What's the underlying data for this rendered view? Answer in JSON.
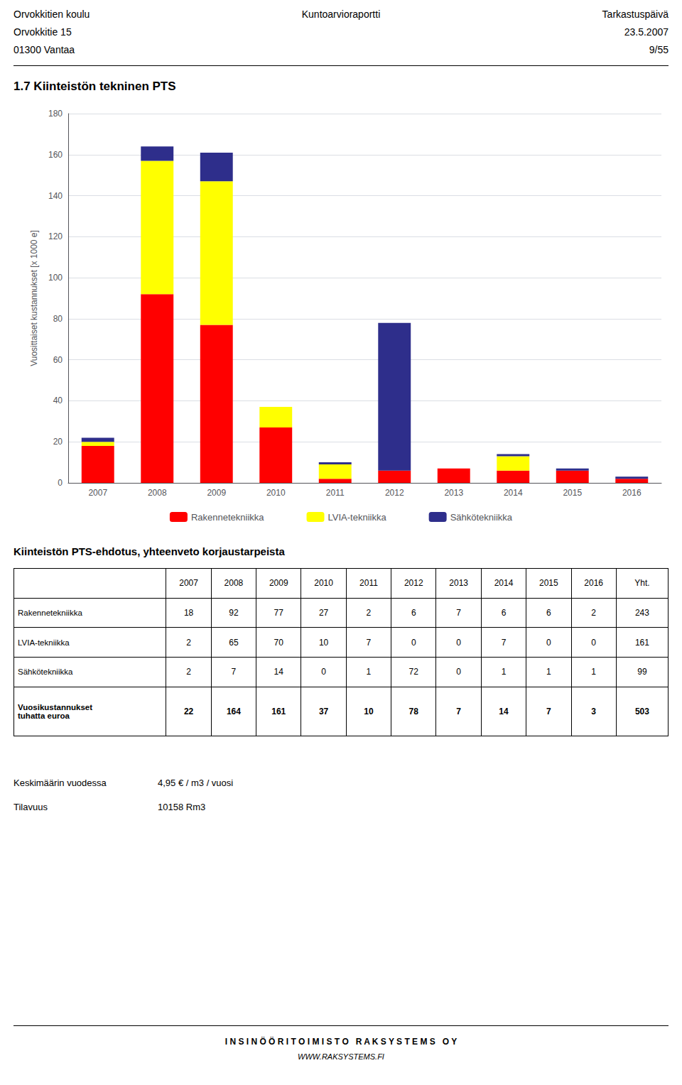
{
  "chart_data": {
    "type": "bar",
    "title": "1.7   Kiinteistön tekninen PTS",
    "categories": [
      "2007",
      "2008",
      "2009",
      "2010",
      "2011",
      "2012",
      "2013",
      "2014",
      "2015",
      "2016"
    ],
    "series": [
      {
        "name": "Rakennetekniikka",
        "color": "#FF0000",
        "values": [
          18,
          92,
          77,
          27,
          2,
          6,
          7,
          6,
          6,
          2
        ]
      },
      {
        "name": "LVIA-tekniikka",
        "color": "#FFFF00",
        "values": [
          2,
          65,
          70,
          10,
          7,
          0,
          0,
          7,
          0,
          0
        ]
      },
      {
        "name": "Sähkötekniikka",
        "color": "#2E2E8B",
        "values": [
          2,
          7,
          14,
          0,
          1,
          72,
          0,
          1,
          1,
          1
        ]
      }
    ],
    "ylabel": "Vuosittaiset kustannukset [x 1000 e]",
    "ylim": [
      0,
      180
    ],
    "yticks": [
      0,
      20,
      40,
      60,
      80,
      100,
      120,
      140,
      160,
      180
    ],
    "grid": true,
    "stacked": true,
    "legend": "bottom"
  },
  "header": {
    "left": [
      "Orvokkitien koulu",
      "Orvokkitie 15",
      "01300 Vantaa"
    ],
    "center": [
      "Kuntoarvioraportti"
    ],
    "right": [
      "Tarkastuspäivä",
      "23.5.2007",
      "9/55"
    ]
  },
  "table": {
    "title": "Kiinteistön PTS-ehdotus, yhteenveto korjaustarpeista",
    "columns": [
      "2007",
      "2008",
      "2009",
      "2010",
      "2011",
      "2012",
      "2013",
      "2014",
      "2015",
      "2016",
      "Yht."
    ],
    "rows": [
      [
        "Rakennetekniikka",
        "18",
        "92",
        "77",
        "27",
        "2",
        "6",
        "7",
        "6",
        "6",
        "2",
        "243"
      ],
      [
        "LVIA-tekniikka",
        "2",
        "65",
        "70",
        "10",
        "7",
        "0",
        "0",
        "7",
        "0",
        "0",
        "161"
      ],
      [
        "Sähkötekniikka",
        "2",
        "7",
        "14",
        "0",
        "1",
        "72",
        "0",
        "1",
        "1",
        "1",
        "99"
      ],
      [
        "Vuosikustannukset\ntuhatta euroa",
        "22",
        "164",
        "161",
        "37",
        "10",
        "78",
        "7",
        "14",
        "7",
        "3",
        "503"
      ]
    ]
  },
  "notes": [
    [
      "Keskimäärin vuodessa",
      "4,95 € / m3 / vuosi"
    ],
    [
      "Tilavuus",
      "10158 Rm3"
    ]
  ],
  "footer": [
    "I N S I N Ö Ö R I T O I M I S T O   R A K S Y S T E M S   O Y",
    "WWW.RAKSYSTEMS.FI"
  ]
}
